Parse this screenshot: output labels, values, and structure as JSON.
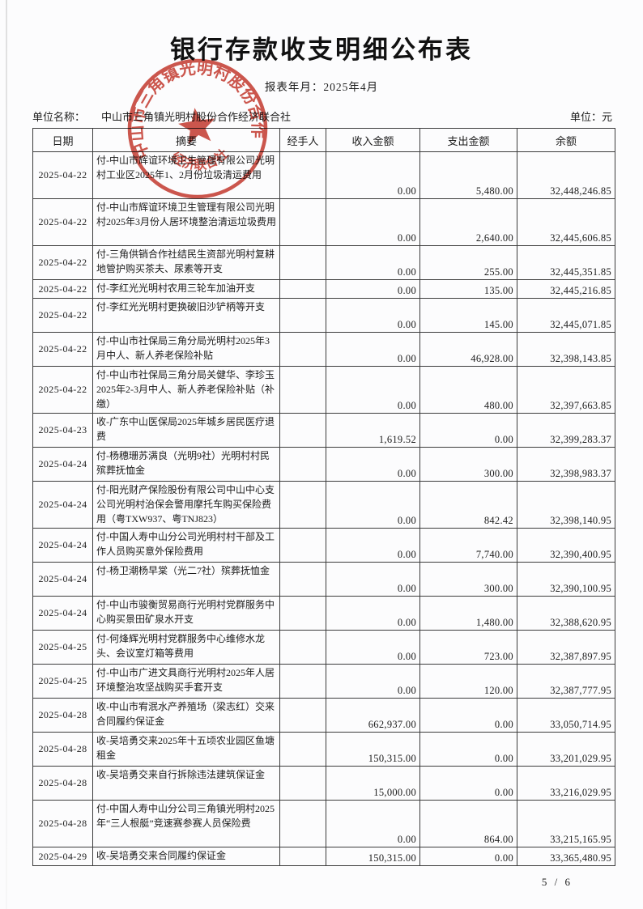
{
  "page": {
    "title": "银行存款收支明细公布表",
    "report_period": "报表年月：2025年4月",
    "unit_name_label": "单位名称：",
    "unit_name": "中山市三角镇光明村股份合作经济联合社",
    "unit_label": "单位：元",
    "page_number": "5 / 6"
  },
  "stamp": {
    "ring_text": "中山市三角镇光明村股份合作",
    "bottom_text": "经济联合社",
    "color": "#c5372b"
  },
  "colors": {
    "text": "#1c1c1c",
    "table_border": "#3c3c3c",
    "paper": "#fcfcfd"
  },
  "table": {
    "headers": [
      "日期",
      "摘要",
      "经手人",
      "收入金额",
      "支出金额",
      "余额"
    ],
    "rows": [
      {
        "date": "2025-04-22",
        "summary": "付-中山市辉谊环境卫生管理有限公司光明村工业区2025年1、2月份垃圾清运费用",
        "handler": "",
        "income": "0.00",
        "expense": "5,480.00",
        "balance": "32,448,246.85",
        "lines": 3
      },
      {
        "date": "2025-04-22",
        "summary": "付-中山市辉谊环境卫生管理有限公司光明村2025年3月份人居环境整治清运垃圾费用",
        "handler": "",
        "income": "0.00",
        "expense": "2,640.00",
        "balance": "32,445,606.85",
        "lines": 3
      },
      {
        "date": "2025-04-22",
        "summary": "付-三角供销合作社结民生资部光明村复耕地管护购买茶夫、尿素等开支",
        "handler": "",
        "income": "0.00",
        "expense": "255.00",
        "balance": "32,445,351.85",
        "lines": 2
      },
      {
        "date": "2025-04-22",
        "summary": "付-李红光光明村农用三轮车加油开支",
        "handler": "",
        "income": "0.00",
        "expense": "135.00",
        "balance": "32,445,216.85",
        "lines": 1
      },
      {
        "date": "2025-04-22",
        "summary": "付-李红光光明村更换破旧沙铲柄等开支",
        "handler": "",
        "income": "0.00",
        "expense": "145.00",
        "balance": "32,445,071.85",
        "lines": 2
      },
      {
        "date": "2025-04-22",
        "summary": "付-中山市社保局三角分局光明村2025年3月中人、新人养老保险补贴",
        "handler": "",
        "income": "0.00",
        "expense": "46,928.00",
        "balance": "32,398,143.85",
        "lines": 2
      },
      {
        "date": "2025-04-22",
        "summary": "付-中山市社保局三角分局关健华、李珍玉2025年2-3月中人、新人养老保险补贴（补缴）",
        "handler": "",
        "income": "0.00",
        "expense": "480.00",
        "balance": "32,397,663.85",
        "lines": 3
      },
      {
        "date": "2025-04-23",
        "summary": "收-广东中山医保局2025年城乡居民医疗退费",
        "handler": "",
        "income": "1,619.52",
        "expense": "0.00",
        "balance": "32,399,283.37",
        "lines": 2
      },
      {
        "date": "2025-04-24",
        "summary": "付-杨穗珊苏满良（光明9社）光明村村民殡葬抚恤金",
        "handler": "",
        "income": "0.00",
        "expense": "300.00",
        "balance": "32,398,983.37",
        "lines": 2
      },
      {
        "date": "2025-04-24",
        "summary": "付-阳光财产保险股份有限公司中山中心支公司光明村治保会警用摩托车购买保险费用（粤TXW937、粤TNJ823）",
        "handler": "",
        "income": "0.00",
        "expense": "842.42",
        "balance": "32,398,140.95",
        "lines": 3
      },
      {
        "date": "2025-04-24",
        "summary": "付-中国人寿中山分公司光明村村干部及工作人员购买意外保险费用",
        "handler": "",
        "income": "0.00",
        "expense": "7,740.00",
        "balance": "32,390,400.95",
        "lines": 2
      },
      {
        "date": "2025-04-24",
        "summary": "付-杨卫潮杨早棠（光二7社）殡葬抚恤金",
        "handler": "",
        "income": "0.00",
        "expense": "300.00",
        "balance": "32,390,100.95",
        "lines": 2
      },
      {
        "date": "2025-04-24",
        "summary": "付-中山市骏衡贸易商行光明村党群服务中心购买景田矿泉水开支",
        "handler": "",
        "income": "0.00",
        "expense": "1,480.00",
        "balance": "32,388,620.95",
        "lines": 2
      },
      {
        "date": "2025-04-25",
        "summary": "付-何烽辉光明村党群服务中心维修水龙头、会议室灯箱等费用",
        "handler": "",
        "income": "0.00",
        "expense": "723.00",
        "balance": "32,387,897.95",
        "lines": 2
      },
      {
        "date": "2025-04-25",
        "summary": "付-中山市广进文具商行光明村2025年人居环境整治攻坚战购买手套开支",
        "handler": "",
        "income": "0.00",
        "expense": "120.00",
        "balance": "32,387,777.95",
        "lines": 2
      },
      {
        "date": "2025-04-28",
        "summary": "收-中山市宥泯水产养殖场（梁志红）交来合同履约保证金",
        "handler": "",
        "income": "662,937.00",
        "expense": "0.00",
        "balance": "33,050,714.95",
        "lines": 2
      },
      {
        "date": "2025-04-28",
        "summary": "收-吴培勇交来2025年十五顷农业园区鱼塘租金",
        "handler": "",
        "income": "150,315.00",
        "expense": "0.00",
        "balance": "33,201,029.95",
        "lines": 2
      },
      {
        "date": "2025-04-28",
        "summary": "收-吴培勇交来自行拆除违法建筑保证金",
        "handler": "",
        "income": "15,000.00",
        "expense": "0.00",
        "balance": "33,216,029.95",
        "lines": 2
      },
      {
        "date": "2025-04-28",
        "summary": "付-中国人寿中山分公司三角镇光明村2025年“三人根艇”竞速赛参赛人员保险费",
        "handler": "",
        "income": "0.00",
        "expense": "864.00",
        "balance": "33,215,165.95",
        "lines": 3
      },
      {
        "date": "2025-04-29",
        "summary": "收-吴培勇交来合同履约保证金",
        "handler": "",
        "income": "150,315.00",
        "expense": "0.00",
        "balance": "33,365,480.95",
        "lines": 1
      }
    ]
  }
}
